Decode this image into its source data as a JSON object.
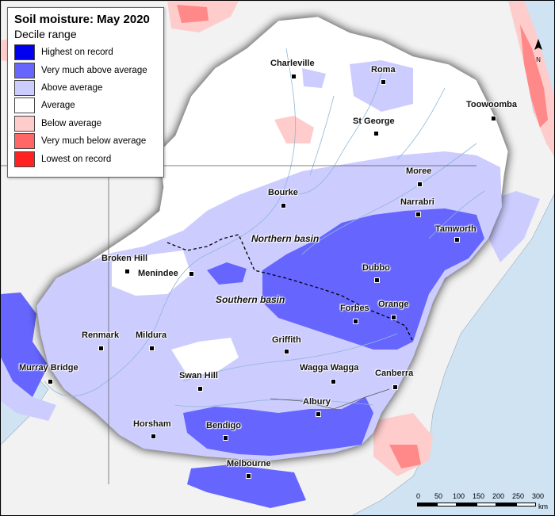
{
  "legend": {
    "title": "Soil moisture: May 2020",
    "subtitle": "Decile range",
    "items": [
      {
        "label": "Highest on record",
        "color": "#0000ee"
      },
      {
        "label": "Very much above average",
        "color": "#6666ff"
      },
      {
        "label": "Above average",
        "color": "#ccccff"
      },
      {
        "label": "Average",
        "color": "#ffffff"
      },
      {
        "label": "Below average",
        "color": "#ffcccc"
      },
      {
        "label": "Very much below average",
        "color": "#ff6666"
      },
      {
        "label": "Lowest on record",
        "color": "#ff2222"
      }
    ]
  },
  "basins": {
    "northern": "Northern basin",
    "southern": "Southern basin"
  },
  "towns": {
    "charleville": "Charleville",
    "roma": "Roma",
    "toowoomba": "Toowoomba",
    "st_george": "St George",
    "moree": "Moree",
    "narrabri": "Narrabri",
    "bourke": "Bourke",
    "tamworth": "Tamworth",
    "broken_hill": "Broken Hill",
    "menindee": "Menindee",
    "dubbo": "Dubbo",
    "orange": "Orange",
    "forbes": "Forbes",
    "griffith": "Griffith",
    "renmark": "Renmark",
    "mildura": "Mildura",
    "wagga_wagga": "Wagga Wagga",
    "canberra": "Canberra",
    "murray_bridge": "Murray Bridge",
    "swan_hill": "Swan Hill",
    "albury": "Albury",
    "horsham": "Horsham",
    "bendigo": "Bendigo",
    "melbourne": "Melbourne"
  },
  "north_arrow": "N",
  "scale": {
    "ticks": [
      "0",
      "50",
      "100",
      "150",
      "200",
      "250",
      "300"
    ],
    "unit": "km"
  },
  "colors": {
    "water": "#cfe3f3",
    "outside_land": "#f2f2f2",
    "basin_land": "#ffffff",
    "river": "#8fb7d8"
  }
}
